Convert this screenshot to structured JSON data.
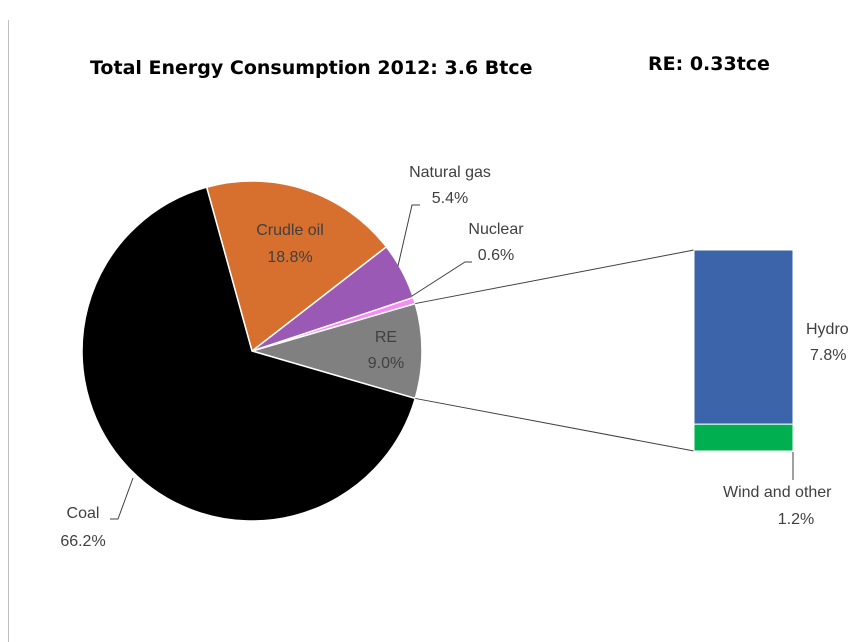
{
  "chart_data": {
    "type": "bar-of-pie",
    "title": "Total Energy Consumption  2012: 3.6 Btce",
    "subtitle": "RE: 0.33tce",
    "pie": {
      "slices": [
        {
          "name": "Coal",
          "value": 66.2,
          "label": "66.2%",
          "color": "#000000"
        },
        {
          "name": "Crudle oil",
          "value": 18.8,
          "label": "18.8%",
          "color": "#D7702F"
        },
        {
          "name": "Natural gas",
          "value": 5.4,
          "label": "5.4%",
          "color": "#9B59B6"
        },
        {
          "name": "Nuclear",
          "value": 0.6,
          "label": "0.6%",
          "color": "#F58CF0"
        },
        {
          "name": "RE",
          "value": 9.0,
          "label": "9.0%",
          "color": "#808080"
        }
      ]
    },
    "bar": {
      "segments": [
        {
          "name": "Hydro",
          "value": 7.8,
          "label": "7.8%",
          "color": "#3C64AA"
        },
        {
          "name": "Wind and other",
          "value": 1.2,
          "label": "1.2%",
          "color": "#00B050"
        }
      ]
    }
  }
}
